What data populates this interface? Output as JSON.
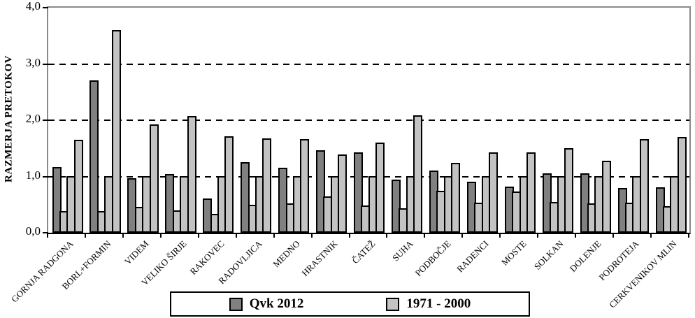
{
  "y_axis": {
    "title": "RAZMERJA PRETOKOV",
    "tick_labels": [
      "4,0",
      "3,0",
      "2,0",
      "1,0",
      "0,0"
    ],
    "tick_values": [
      4,
      3,
      2,
      1,
      0
    ]
  },
  "legend": {
    "items": [
      {
        "label": "Qvk 2012",
        "style": "dark"
      },
      {
        "label": "1971 - 2000",
        "style": "light"
      }
    ]
  },
  "colors": {
    "dark_bar": "#808080",
    "light_bar": "#c3c3c3",
    "bar_border": "#000000",
    "frame": "#8a8a8a",
    "gridline": "#000000"
  },
  "chart_data": {
    "type": "bar",
    "title": "",
    "xlabel": "",
    "ylabel": "RAZMERJA PRETOKOV",
    "ylim": [
      0,
      4
    ],
    "yticks": [
      0,
      1,
      2,
      3,
      4
    ],
    "gridlines_at": [
      1,
      2,
      3
    ],
    "grid_style": "dashed",
    "legend_position": "bottom",
    "legend_entries": [
      "Qvk 2012",
      "1971 - 2000"
    ],
    "bars_per_group_note": "each station shows 4 bars: 1 dark (Qvk 2012) then 3 light (1971 - 2000)",
    "categories": [
      "GORNJA RADGONA",
      "BORL+FORMIN",
      "VIDEM",
      "VELIKO ŠIRJE",
      "RAKOVEC",
      "RADOVLJICA",
      "MEDNO",
      "HRASTNIK",
      "ČATEŽ",
      "SUHA",
      "PODBOČJE",
      "RADENCI",
      "MOSTE",
      "SOLKAN",
      "DOLENJE",
      "PODROTEJA",
      "CERKVENIKOV MLIN"
    ],
    "series": [
      {
        "name": "Qvk 2012",
        "style": "dark",
        "values": [
          1.17,
          2.71,
          0.97,
          1.04,
          0.61,
          1.25,
          1.16,
          1.47,
          1.43,
          0.95,
          1.1,
          0.91,
          0.82,
          1.06,
          1.06,
          0.8,
          0.81
        ]
      },
      {
        "name": "1971 - 2000",
        "style": "light",
        "values": [
          0.38,
          0.38,
          0.46,
          0.4,
          0.33,
          0.5,
          0.52,
          0.65,
          0.48,
          0.44,
          0.75,
          0.54,
          0.73,
          0.55,
          0.52,
          0.53,
          0.47
        ]
      },
      {
        "name": "1971 - 2000",
        "style": "light",
        "values": [
          1.01,
          1.01,
          1.01,
          1.01,
          1.01,
          1.01,
          1.01,
          1.01,
          1.01,
          1.01,
          1.01,
          1.01,
          1.01,
          1.01,
          1.01,
          1.01,
          1.01
        ]
      },
      {
        "name": "1971 - 2000",
        "style": "light",
        "values": [
          1.65,
          3.6,
          1.93,
          2.08,
          1.71,
          1.68,
          1.66,
          1.39,
          1.6,
          2.09,
          1.24,
          1.43,
          1.43,
          1.5,
          1.28,
          1.67,
          1.7
        ]
      }
    ]
  }
}
